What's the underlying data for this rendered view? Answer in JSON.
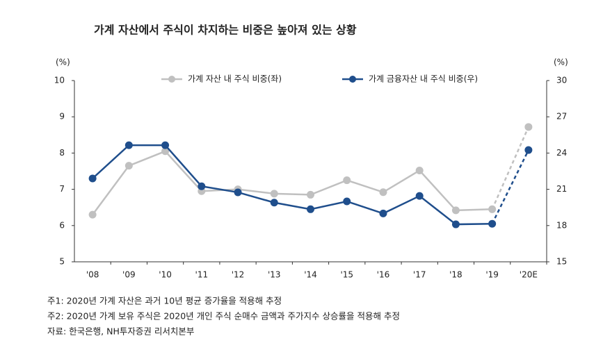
{
  "chart_data": {
    "type": "line",
    "title": "가계 자산에서 주식이 차지하는 비중은 높아져 있는 상황",
    "y_unit": "(%)",
    "y2_unit": "(%)",
    "categories": [
      "'08",
      "'09",
      "'10",
      "'11",
      "'12",
      "'13",
      "'14",
      "'15",
      "'16",
      "'17",
      "'18",
      "'19",
      "'20E"
    ],
    "series": [
      {
        "name": "가계 자산 내 주식 비중(좌)",
        "color": "#c0c0c0",
        "axis": "y",
        "dashed_last": true,
        "values": [
          6.3,
          7.65,
          8.05,
          6.95,
          7.0,
          6.88,
          6.85,
          7.25,
          6.92,
          7.52,
          6.42,
          6.45,
          8.72
        ]
      },
      {
        "name": "가계 금융자산 내 주식 비중(우)",
        "color": "#1f4e8c",
        "axis": "y2",
        "dashed_last": true,
        "values": [
          21.9,
          24.65,
          24.65,
          21.25,
          20.75,
          19.9,
          19.35,
          20.0,
          19.0,
          20.45,
          18.1,
          18.15,
          24.25
        ]
      }
    ],
    "ylim": [
      5,
      10
    ],
    "yticks": [
      5,
      6,
      7,
      8,
      9,
      10
    ],
    "y2lim": [
      15,
      30
    ],
    "y2ticks": [
      15,
      18,
      21,
      24,
      27,
      30
    ],
    "grid": false,
    "notes": [
      "주1: 2020년 가계 자산은 과거 10년 평균 증가율을 적용해 추정",
      "주2: 2020년 가계 보유 주식은 2020년 개인 주식 순매수 금액과 주가지수 상승률을 적용해 추정",
      "자료: 한국은행, NH투자증권 리서치본부"
    ]
  }
}
